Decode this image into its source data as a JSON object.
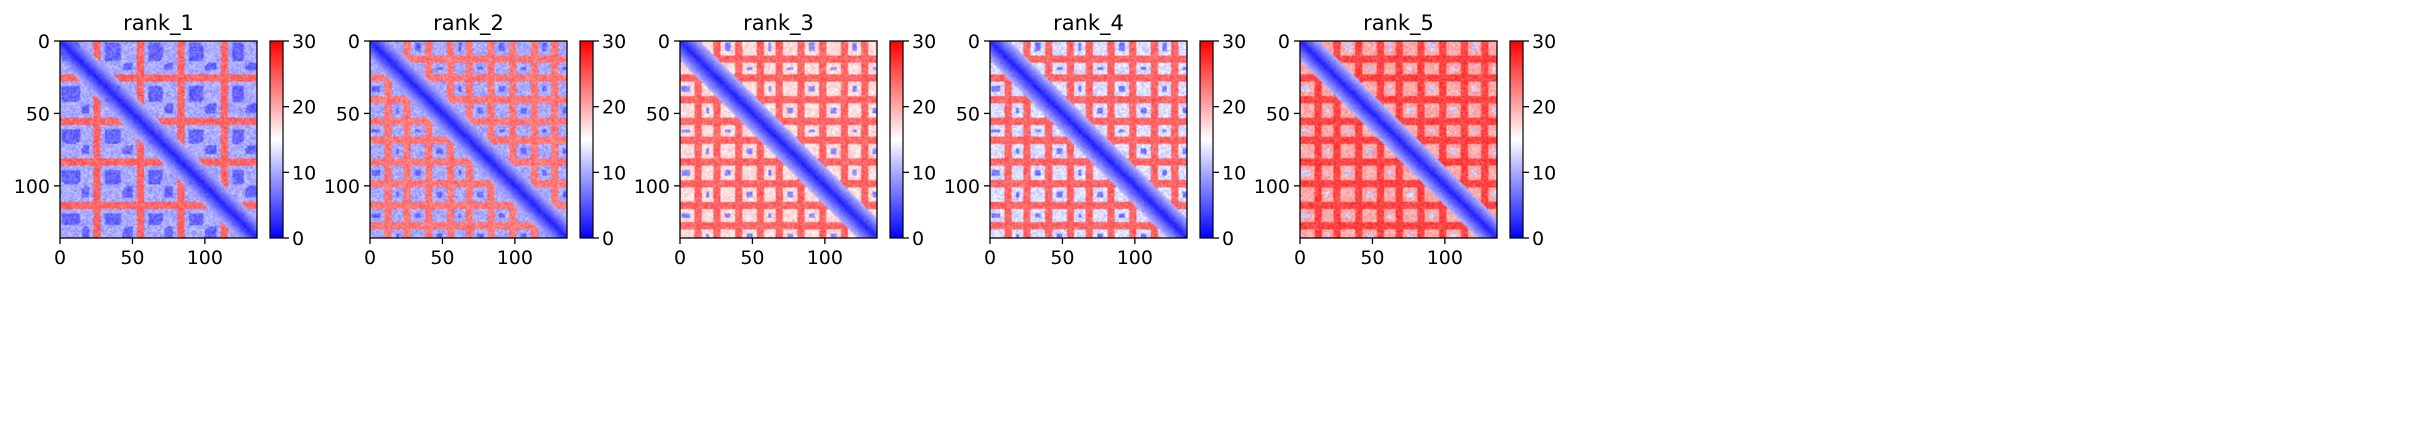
{
  "figure": {
    "colormap": "bwr",
    "colors": {
      "low": "#0000ff",
      "mid": "#ffffff",
      "high": "#ff0000",
      "axis": "#000000"
    }
  },
  "chart_data": [
    {
      "type": "heatmap",
      "title": "rank_1",
      "xlabel": "",
      "ylabel": "",
      "size": 136,
      "xlim": [
        0,
        136
      ],
      "ylim": [
        136,
        0
      ],
      "x_ticks": [
        0,
        50,
        100
      ],
      "y_ticks": [
        0,
        50,
        100
      ],
      "colorbar": {
        "vmin": 0,
        "vmax": 30,
        "ticks": [
          0,
          10,
          20,
          30
        ]
      },
      "diagonal_band": "blue",
      "background_level": 10,
      "red_stripe_rows": [
        25,
        55,
        83,
        113
      ],
      "red_stripe_level": 24,
      "blue_block_level": 6,
      "grid": false
    },
    {
      "type": "heatmap",
      "title": "rank_2",
      "xlabel": "",
      "ylabel": "",
      "size": 136,
      "xlim": [
        0,
        136
      ],
      "ylim": [
        136,
        0
      ],
      "x_ticks": [
        0,
        50,
        100
      ],
      "y_ticks": [
        0,
        50,
        100
      ],
      "colorbar": {
        "vmin": 0,
        "vmax": 30,
        "ticks": [
          0,
          10,
          20,
          30
        ]
      },
      "diagonal_band": "blue",
      "background_level": 10,
      "red_stripe_rows": [
        12,
        25,
        40,
        55,
        68,
        83,
        98,
        113,
        127
      ],
      "red_stripe_level": 23,
      "blue_block_level": 6,
      "grid": false
    },
    {
      "type": "heatmap",
      "title": "rank_3",
      "xlabel": "",
      "ylabel": "",
      "size": 136,
      "xlim": [
        0,
        136
      ],
      "ylim": [
        136,
        0
      ],
      "x_ticks": [
        0,
        50,
        100
      ],
      "y_ticks": [
        0,
        50,
        100
      ],
      "colorbar": {
        "vmin": 0,
        "vmax": 30,
        "ticks": [
          0,
          10,
          20,
          30
        ]
      },
      "diagonal_band": "blue",
      "background_level": 17,
      "red_stripe_rows": [
        12,
        25,
        40,
        55,
        68,
        83,
        98,
        113,
        127
      ],
      "red_stripe_level": 24,
      "blue_block_level": 8,
      "grid": false
    },
    {
      "type": "heatmap",
      "title": "rank_4",
      "xlabel": "",
      "ylabel": "",
      "size": 136,
      "xlim": [
        0,
        136
      ],
      "ylim": [
        136,
        0
      ],
      "x_ticks": [
        0,
        50,
        100
      ],
      "y_ticks": [
        0,
        50,
        100
      ],
      "colorbar": {
        "vmin": 0,
        "vmax": 30,
        "ticks": [
          0,
          10,
          20,
          30
        ]
      },
      "diagonal_band": "blue",
      "background_level": 13,
      "red_stripe_rows": [
        12,
        25,
        40,
        55,
        68,
        83,
        98,
        113,
        127
      ],
      "red_stripe_level": 24,
      "blue_block_level": 7,
      "grid": false
    },
    {
      "type": "heatmap",
      "title": "rank_5",
      "xlabel": "",
      "ylabel": "",
      "size": 136,
      "xlim": [
        0,
        136
      ],
      "ylim": [
        136,
        0
      ],
      "x_ticks": [
        0,
        50,
        100
      ],
      "y_ticks": [
        0,
        50,
        100
      ],
      "colorbar": {
        "vmin": 0,
        "vmax": 30,
        "ticks": [
          0,
          10,
          20,
          30
        ]
      },
      "diagonal_band": "blue",
      "background_level": 20,
      "red_stripe_rows": [
        12,
        25,
        40,
        55,
        68,
        83,
        98,
        113,
        127
      ],
      "red_stripe_level": 26,
      "blue_block_level": 12,
      "grid": false
    }
  ]
}
